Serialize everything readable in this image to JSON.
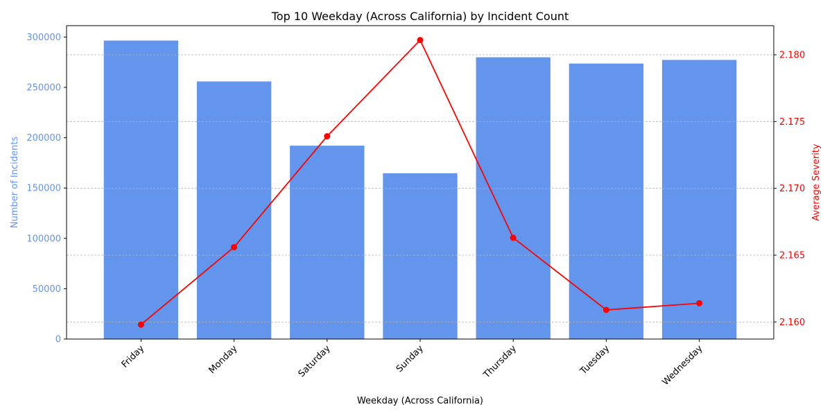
{
  "chart_data": {
    "type": "bar",
    "title": "Top 10 Weekday (Across California) by Incident Count",
    "xlabel": "Weekday (Across California)",
    "ylabel": "Number of Incidents",
    "y2label": "Average Severity",
    "categories": [
      "Friday",
      "Monday",
      "Saturday",
      "Sunday",
      "Thursday",
      "Tuesday",
      "Wednesday"
    ],
    "series": [
      {
        "type": "bar",
        "axis": "left",
        "color": "#6495ED",
        "values": [
          296500,
          255900,
          192100,
          164700,
          279900,
          273700,
          277300
        ]
      },
      {
        "type": "line",
        "axis": "right",
        "color": "#FF0000",
        "marker": "circle",
        "values": [
          2.1598,
          2.1656,
          2.1739,
          2.1811,
          2.1663,
          2.1609,
          2.1614
        ]
      }
    ],
    "ylim": [
      0,
      311325
    ],
    "y2lim": [
      2.15872,
      2.18218
    ],
    "yticks": [
      "0",
      "50000",
      "100000",
      "150000",
      "200000",
      "250000",
      "300000"
    ],
    "yticks_values": [
      0,
      50000,
      100000,
      150000,
      200000,
      250000,
      300000
    ],
    "y2ticks": [
      "2.160",
      "2.165",
      "2.170",
      "2.175",
      "2.180"
    ],
    "y2ticks_values": [
      2.16,
      2.165,
      2.17,
      2.175,
      2.18
    ],
    "grid": "horizontal dashed (right axis)",
    "left_axis_color": "#6495ED",
    "right_axis_color": "#FF0000",
    "tick_rotation_deg": 45
  }
}
